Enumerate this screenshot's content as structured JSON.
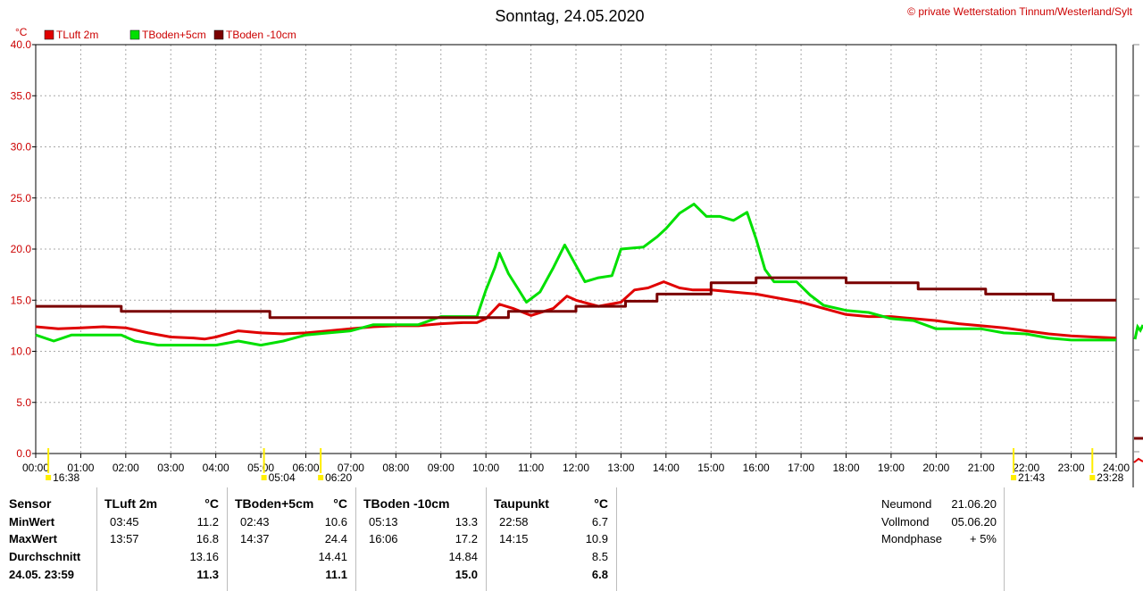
{
  "title": "Sonntag, 24.05.2020",
  "copyright": "© private Wetterstation Tinnum/Westerland/Sylt",
  "colors": {
    "tluft": "#e00000",
    "tboden5": "#00e000",
    "tboden10": "#7a0000",
    "grid": "#a8a8a8",
    "axis": "#000000",
    "sun": "#ffee00"
  },
  "chart_data": {
    "type": "line",
    "title": "Sonntag, 24.05.2020",
    "ylabel": "°C",
    "ylim": [
      0,
      40
    ],
    "xlim": [
      0,
      24
    ],
    "y_ticks": [
      "0.0",
      "5.0",
      "10.0",
      "15.0",
      "20.0",
      "25.0",
      "30.0",
      "35.0",
      "40.0"
    ],
    "x_ticks": [
      "00:00",
      "01:00",
      "02:00",
      "03:00",
      "04:00",
      "05:00",
      "06:00",
      "07:00",
      "08:00",
      "09:00",
      "10:00",
      "11:00",
      "12:00",
      "13:00",
      "14:00",
      "15:00",
      "16:00",
      "17:00",
      "18:00",
      "19:00",
      "20:00",
      "21:00",
      "22:00",
      "23:00",
      "24:00"
    ],
    "grid": true,
    "legend_position": "top-left",
    "series": [
      {
        "name": "TLuft 2m",
        "color": "#e00000",
        "x": [
          0,
          0.5,
          1,
          1.5,
          2,
          2.5,
          3,
          3.5,
          3.75,
          4,
          4.5,
          5,
          5.5,
          6,
          6.5,
          7,
          7.5,
          8,
          8.5,
          9,
          9.5,
          9.8,
          10,
          10.3,
          10.6,
          11,
          11.5,
          11.8,
          12,
          12.5,
          13,
          13.3,
          13.6,
          13.95,
          14.3,
          14.6,
          15,
          15.5,
          16,
          16.5,
          17,
          17.5,
          18,
          18.5,
          19,
          19.5,
          20,
          20.5,
          21,
          21.5,
          22,
          22.5,
          23,
          23.5,
          24
        ],
        "y": [
          12.4,
          12.2,
          12.3,
          12.4,
          12.3,
          11.8,
          11.4,
          11.3,
          11.2,
          11.4,
          12.0,
          11.8,
          11.7,
          11.8,
          12.0,
          12.2,
          12.4,
          12.5,
          12.5,
          12.7,
          12.8,
          12.8,
          13.2,
          14.6,
          14.2,
          13.5,
          14.2,
          15.4,
          15.0,
          14.4,
          14.8,
          16.0,
          16.2,
          16.8,
          16.2,
          16.0,
          16.0,
          15.8,
          15.6,
          15.2,
          14.8,
          14.2,
          13.6,
          13.4,
          13.4,
          13.2,
          13.0,
          12.7,
          12.5,
          12.3,
          12.0,
          11.7,
          11.5,
          11.4,
          11.3
        ]
      },
      {
        "name": "TBoden+5cm",
        "color": "#00e000",
        "x": [
          0,
          0.4,
          0.8,
          1.4,
          1.9,
          2.2,
          2.72,
          3.0,
          3.5,
          4.0,
          4.5,
          5.0,
          5.5,
          6.0,
          6.5,
          7.0,
          7.5,
          8.0,
          8.5,
          9.0,
          9.5,
          9.8,
          10.0,
          10.2,
          10.3,
          10.5,
          10.7,
          10.9,
          11.2,
          11.5,
          11.75,
          12.0,
          12.2,
          12.5,
          12.8,
          13.0,
          13.5,
          13.8,
          14.0,
          14.3,
          14.62,
          14.9,
          15.2,
          15.5,
          15.8,
          16.0,
          16.2,
          16.4,
          16.9,
          17.2,
          17.5,
          18.0,
          18.5,
          19.0,
          19.5,
          20.0,
          21.0,
          21.5,
          22.0,
          22.5,
          23.0,
          24.0
        ],
        "y": [
          11.6,
          11.0,
          11.6,
          11.6,
          11.6,
          11.0,
          10.6,
          10.6,
          10.6,
          10.6,
          11.0,
          10.6,
          11.0,
          11.6,
          11.8,
          12.0,
          12.6,
          12.6,
          12.6,
          13.4,
          13.4,
          13.4,
          16.0,
          18.2,
          19.6,
          17.6,
          16.2,
          14.8,
          15.8,
          18.2,
          20.4,
          18.4,
          16.8,
          17.2,
          17.4,
          20.0,
          20.2,
          21.2,
          22.0,
          23.5,
          24.4,
          23.2,
          23.2,
          22.8,
          23.6,
          21.0,
          18.0,
          16.8,
          16.8,
          15.5,
          14.5,
          14.0,
          13.8,
          13.2,
          13.0,
          12.2,
          12.2,
          11.8,
          11.7,
          11.3,
          11.1,
          11.1
        ]
      },
      {
        "name": "TBoden -10cm",
        "color": "#7a0000",
        "x": [
          0,
          1.9,
          1.9,
          5.2,
          5.2,
          10.5,
          10.5,
          12,
          12,
          13.1,
          13.1,
          13.8,
          13.8,
          15,
          15,
          16,
          16,
          18,
          18,
          19.6,
          19.6,
          21.1,
          21.1,
          22.6,
          22.6,
          24
        ],
        "y": [
          14.4,
          14.4,
          13.9,
          13.9,
          13.3,
          13.3,
          13.9,
          13.9,
          14.4,
          14.4,
          14.9,
          14.9,
          15.6,
          15.6,
          16.7,
          16.7,
          17.2,
          17.2,
          16.7,
          16.7,
          16.1,
          16.1,
          15.6,
          15.6,
          15.0,
          15.0
        ]
      }
    ]
  },
  "sun_markers": [
    {
      "label": "16:38",
      "hour": 0.28,
      "row": "low"
    },
    {
      "label": "05:04",
      "hour": 5.07,
      "row": "low"
    },
    {
      "label": "06:20",
      "hour": 6.33,
      "row": "low"
    },
    {
      "label": "21:43",
      "hour": 21.72,
      "row": "low"
    },
    {
      "label": "23:28",
      "hour": 23.47,
      "row": "low"
    }
  ],
  "table": {
    "sensor": {
      "header": "Sensor",
      "rows": [
        "MinWert",
        "MaxWert",
        "Durchschnitt",
        "24.05. 23:59"
      ]
    },
    "columns": [
      {
        "name": "TLuft 2m",
        "unit": "°C",
        "min_time": "03:45",
        "min": "11.2",
        "max_time": "13:57",
        "max": "16.8",
        "avg": "13.16",
        "current": "11.3"
      },
      {
        "name": "TBoden+5cm",
        "unit": "°C",
        "min_time": "02:43",
        "min": "10.6",
        "max_time": "14:37",
        "max": "24.4",
        "avg": "14.41",
        "current": "11.1"
      },
      {
        "name": "TBoden -10cm",
        "unit": "",
        "min_time": "05:13",
        "min": "13.3",
        "max_time": "16:06",
        "max": "17.2",
        "avg": "14.84",
        "current": "15.0"
      },
      {
        "name": "Taupunkt",
        "unit": "°C",
        "min_time": "22:58",
        "min": "6.7",
        "max_time": "14:15",
        "max": "10.9",
        "avg": "8.5",
        "current": "6.8"
      }
    ],
    "moon": [
      {
        "label": "Neumond",
        "value": "21.06.20"
      },
      {
        "label": "Vollmond",
        "value": "05.06.20"
      },
      {
        "label": "Mondphase",
        "value": "+ 5%"
      }
    ]
  }
}
